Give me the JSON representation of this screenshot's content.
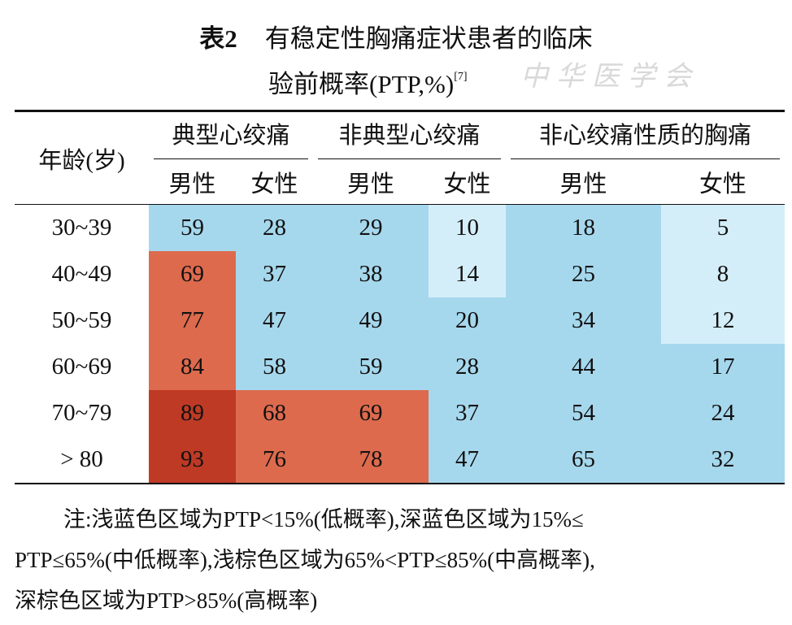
{
  "title": {
    "label": "表2",
    "text_line1": "有稳定性胸痛症状患者的临床",
    "text_line2": "验前概率(PTP,%)",
    "ref": "[7]"
  },
  "watermark": "中华医学会",
  "table": {
    "row_header": "年龄(岁)",
    "groups": [
      "典型心绞痛",
      "非典型心绞痛",
      "非心绞痛性质的胸痛"
    ],
    "subheaders": [
      "男性",
      "女性",
      "男性",
      "女性",
      "男性",
      "女性"
    ],
    "rows": [
      {
        "age": "30~39",
        "values": [
          59,
          28,
          29,
          10,
          18,
          5
        ],
        "colors": [
          "#a6d8ed",
          "#a6d8ed",
          "#a6d8ed",
          "#d4eef9",
          "#a6d8ed",
          "#d4eef9"
        ]
      },
      {
        "age": "40~49",
        "values": [
          69,
          37,
          38,
          14,
          25,
          8
        ],
        "colors": [
          "#dd6a4d",
          "#a6d8ed",
          "#a6d8ed",
          "#d4eef9",
          "#a6d8ed",
          "#d4eef9"
        ]
      },
      {
        "age": "50~59",
        "values": [
          77,
          47,
          49,
          20,
          34,
          12
        ],
        "colors": [
          "#dd6a4d",
          "#a6d8ed",
          "#a6d8ed",
          "#a6d8ed",
          "#a6d8ed",
          "#d4eef9"
        ]
      },
      {
        "age": "60~69",
        "values": [
          84,
          58,
          59,
          28,
          44,
          17
        ],
        "colors": [
          "#dd6a4d",
          "#a6d8ed",
          "#a6d8ed",
          "#a6d8ed",
          "#a6d8ed",
          "#a6d8ed"
        ]
      },
      {
        "age": "70~79",
        "values": [
          89,
          68,
          69,
          37,
          54,
          24
        ],
        "colors": [
          "#be3a25",
          "#dd6a4d",
          "#dd6a4d",
          "#a6d8ed",
          "#a6d8ed",
          "#a6d8ed"
        ]
      },
      {
        "age": "> 80",
        "values": [
          93,
          76,
          78,
          47,
          65,
          32
        ],
        "colors": [
          "#be3a25",
          "#dd6a4d",
          "#dd6a4d",
          "#a6d8ed",
          "#a6d8ed",
          "#a6d8ed"
        ]
      }
    ]
  },
  "note": [
    "注:浅蓝色区域为PTP<15%(低概率),深蓝色区域为15%≤",
    "PTP≤65%(中低概率),浅棕色区域为65%<PTP≤85%(中高概率),",
    "深棕色区域为PTP>85%(高概率)"
  ]
}
